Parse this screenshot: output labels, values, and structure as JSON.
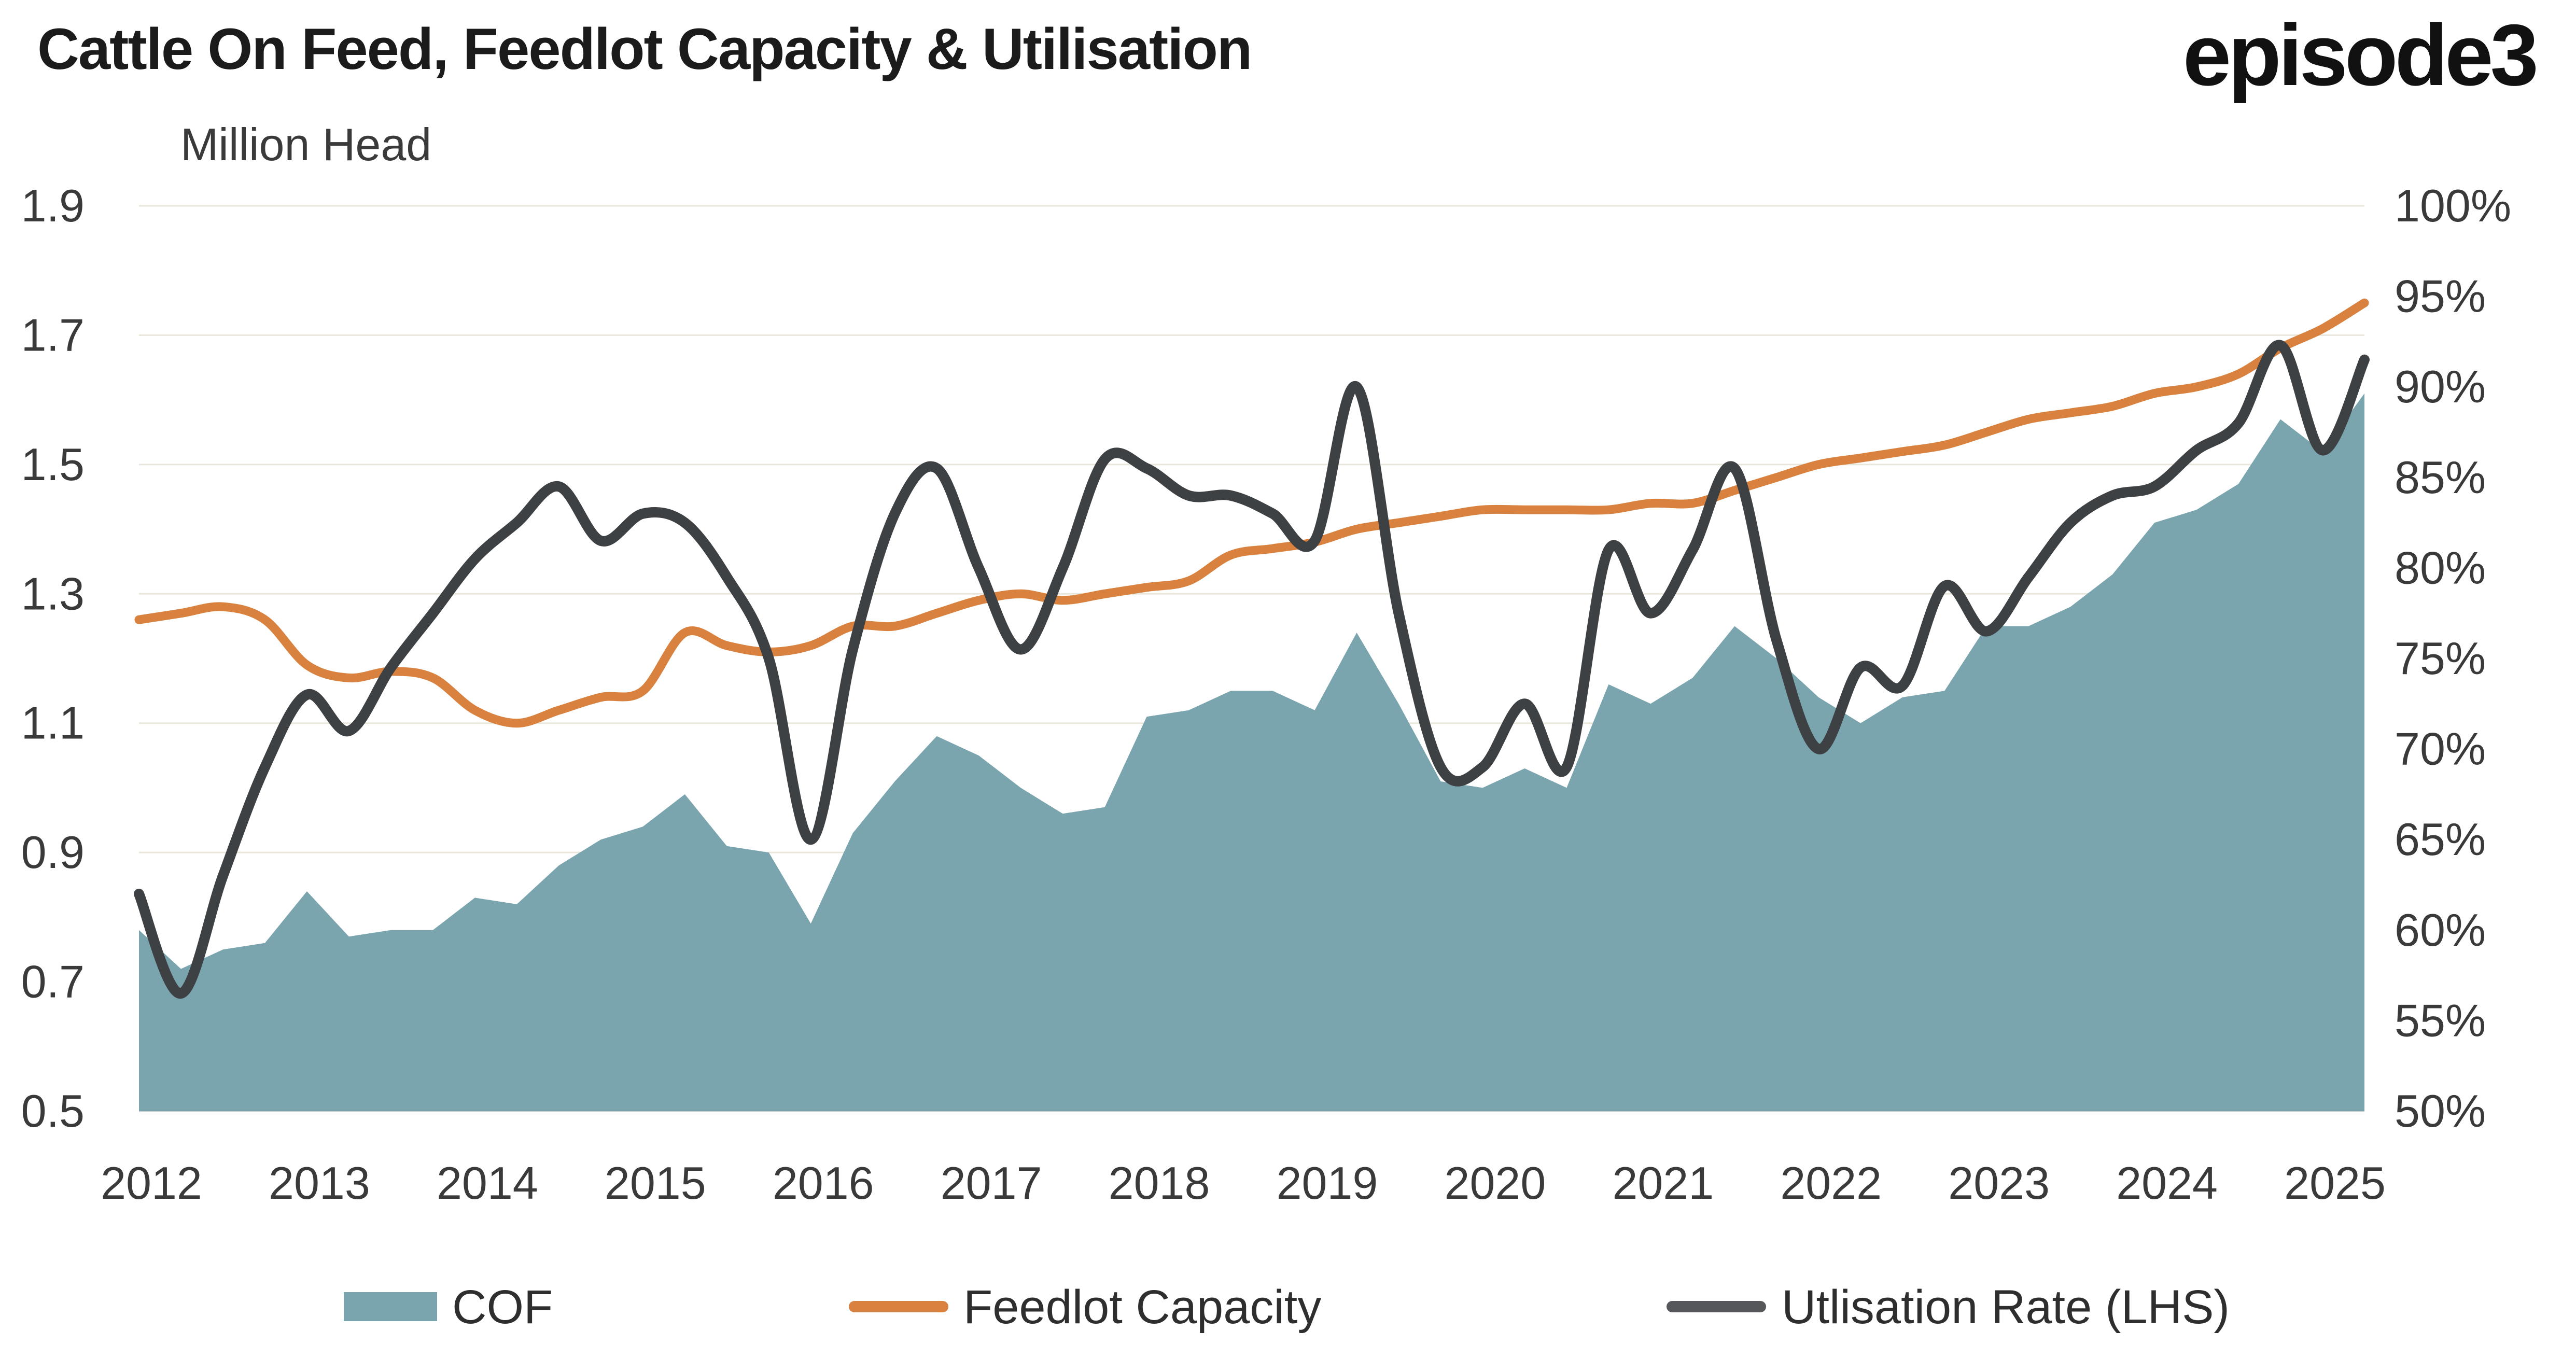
{
  "header": {
    "title": "Cattle On Feed, Feedlot Capacity & Utilisation",
    "logo": "episode3",
    "axis_unit_label": "Million Head"
  },
  "left_axis": {
    "ticks": [
      "1.9",
      "1.7",
      "1.5",
      "1.3",
      "1.1",
      "0.9",
      "0.7",
      "0.5"
    ],
    "min": 0.5,
    "max": 1.9
  },
  "right_axis": {
    "ticks": [
      "100%",
      "95%",
      "90%",
      "85%",
      "80%",
      "75%",
      "70%",
      "65%",
      "60%",
      "55%",
      "50%"
    ],
    "min": 50,
    "max": 100
  },
  "x_axis": {
    "year_labels": [
      "2012",
      "2013",
      "2014",
      "2015",
      "2016",
      "2017",
      "2018",
      "2019",
      "2020",
      "2021",
      "2022",
      "2023",
      "2024",
      "2025"
    ]
  },
  "legend": [
    {
      "label": "COF",
      "swatch": "area",
      "color": "#7aa4ae"
    },
    {
      "label": "Feedlot Capacity",
      "swatch": "line",
      "color": "#d9823f"
    },
    {
      "label": "Utlisation Rate (LHS)",
      "swatch": "line",
      "color": "#55575b"
    }
  ],
  "colors": {
    "cof_fill": "#7aa4ae",
    "capacity_line": "#d9823f",
    "utilisation_line": "#3e4144",
    "gridline": "#e9e7dc",
    "axis_line": "#d2d2d2",
    "tick_text": "#3a3a3a",
    "legend_text": "#2e2e2e"
  },
  "chart_data": {
    "type": "area+line combo, quarterly time series",
    "title": "Cattle On Feed, Feedlot Capacity & Utilisation",
    "x_start": 2012.0,
    "x_step": 0.25,
    "x_end": 2025.25,
    "left_ylim": [
      0.5,
      1.9
    ],
    "right_ylim": [
      50,
      100
    ],
    "grid": "horizontal only",
    "legend_position": "bottom",
    "series": [
      {
        "name": "COF",
        "type": "area",
        "axis": "left",
        "unit": "Million Head",
        "color": "#7aa4ae",
        "values": [
          0.78,
          0.72,
          0.75,
          0.76,
          0.84,
          0.77,
          0.78,
          0.78,
          0.83,
          0.82,
          0.88,
          0.92,
          0.94,
          0.99,
          0.91,
          0.9,
          0.79,
          0.93,
          1.01,
          1.08,
          1.05,
          1.0,
          0.96,
          0.97,
          1.11,
          1.12,
          1.15,
          1.15,
          1.12,
          1.24,
          1.13,
          1.01,
          1.0,
          1.03,
          1.0,
          1.16,
          1.13,
          1.17,
          1.25,
          1.2,
          1.14,
          1.1,
          1.14,
          1.15,
          1.25,
          1.25,
          1.28,
          1.33,
          1.41,
          1.43,
          1.47,
          1.57,
          1.52,
          1.61
        ]
      },
      {
        "name": "Feedlot Capacity",
        "type": "line",
        "axis": "left",
        "unit": "Million Head",
        "color": "#d9823f",
        "values": [
          1.26,
          1.27,
          1.28,
          1.26,
          1.19,
          1.17,
          1.18,
          1.17,
          1.12,
          1.1,
          1.12,
          1.14,
          1.15,
          1.24,
          1.22,
          1.21,
          1.22,
          1.25,
          1.25,
          1.27,
          1.29,
          1.3,
          1.29,
          1.3,
          1.31,
          1.32,
          1.36,
          1.37,
          1.38,
          1.4,
          1.41,
          1.42,
          1.43,
          1.43,
          1.43,
          1.43,
          1.44,
          1.44,
          1.46,
          1.48,
          1.5,
          1.51,
          1.52,
          1.53,
          1.55,
          1.57,
          1.58,
          1.59,
          1.61,
          1.62,
          1.64,
          1.68,
          1.71,
          1.75
        ]
      },
      {
        "name": "Utlisation Rate (LHS)",
        "type": "line",
        "axis": "right",
        "unit": "%",
        "color": "#3e4144",
        "values": [
          62,
          56.5,
          63,
          69,
          73,
          71,
          74.5,
          77.5,
          80.5,
          82.5,
          84.5,
          81.5,
          83,
          82.5,
          79.5,
          75,
          65,
          75.5,
          83,
          85.5,
          80,
          75.5,
          80,
          86,
          85.5,
          84,
          84,
          83,
          81.5,
          90,
          77.5,
          69,
          69,
          72.5,
          69,
          81,
          77.5,
          81,
          85.5,
          76,
          70,
          74.5,
          73.5,
          79,
          76.5,
          79.5,
          82.5,
          84,
          84.5,
          86.5,
          88,
          92.3,
          86.5,
          91.5
        ]
      }
    ]
  }
}
